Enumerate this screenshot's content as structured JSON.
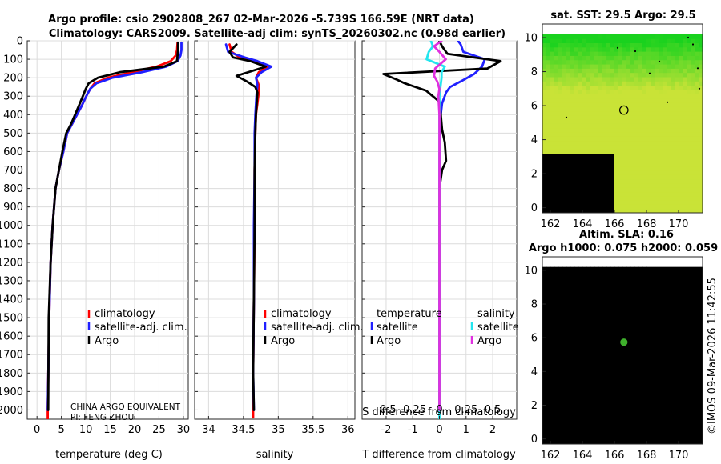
{
  "header": {
    "line1": "Argo profile: csio 2902808_267 02-Mar-2026 -5.739S 166.59E (NRT data)",
    "line2": "Climatology: CARS2009. Satellite-adj clim: synTS_20260302.nc (0.98d earlier)"
  },
  "credit": {
    "org": "CHINA ARGO EQUIVALENT",
    "pi": "PI: FENG ZHOU"
  },
  "timestamp": "©IMOS 09-Mar-2026 11:42:55",
  "colors": {
    "climatology": "#ff0000",
    "satellite_adj": "#1f1fff",
    "argo": "#000000",
    "temp_satellite": "#2020ff",
    "sal_satellite": "#22e5ee",
    "sal_argo": "#e030e0",
    "map_green": "#19d21e",
    "map_yellow": "#c9e337",
    "map_orange": "#e7c63a"
  },
  "chart_data": [
    {
      "type": "line",
      "title": "",
      "xlabel": "temperature (deg C)",
      "ylabel": "",
      "xlim": [
        -2,
        31
      ],
      "ylim": [
        2050,
        0
      ],
      "xticks": [
        0,
        5,
        10,
        15,
        20,
        25,
        30
      ],
      "yticks": [
        0,
        100,
        200,
        300,
        400,
        500,
        600,
        700,
        800,
        900,
        1000,
        1100,
        1200,
        1300,
        1400,
        1500,
        1600,
        1700,
        1800,
        1900,
        2000
      ],
      "legend": {
        "position": "bottom-right",
        "entries": [
          "climatology",
          "satellite-adj. clim.",
          "Argo"
        ]
      },
      "series": [
        {
          "name": "climatology",
          "color": "#ff0000",
          "x": [
            28.8,
            28.7,
            28.4,
            27.4,
            24.5,
            19.5,
            14.5,
            11.8,
            10.9,
            10.1,
            9.2,
            8.2,
            7.2,
            6.2,
            5.4,
            4.5,
            3.8,
            3.2,
            2.8,
            2.5,
            2.2,
            2.2
          ],
          "y": [
            10,
            50,
            80,
            110,
            140,
            170,
            200,
            230,
            260,
            300,
            350,
            400,
            450,
            500,
            600,
            700,
            800,
            1000,
            1200,
            1500,
            2000,
            2050
          ]
        },
        {
          "name": "satellite-adj. clim.",
          "color": "#1f1fff",
          "x": [
            29.6,
            29.6,
            29.4,
            28.8,
            26.5,
            21.5,
            15.5,
            12.2,
            10.9,
            10.1,
            9.2,
            8.2,
            7.2,
            6.2,
            5.4,
            4.5,
            3.8,
            3.2,
            2.8,
            2.5,
            2.2
          ],
          "y": [
            10,
            50,
            80,
            110,
            140,
            170,
            200,
            230,
            260,
            300,
            350,
            400,
            450,
            500,
            600,
            700,
            800,
            1000,
            1200,
            1500,
            2000
          ]
        },
        {
          "name": "Argo",
          "color": "#000000",
          "x": [
            28.9,
            28.9,
            28.8,
            28.7,
            26.0,
            17.0,
            12.5,
            10.6,
            10.0,
            9.4,
            8.6,
            7.8,
            7.0,
            6.0,
            5.2,
            4.5,
            3.8,
            3.2,
            2.8,
            2.4,
            2.3
          ],
          "y": [
            10,
            50,
            80,
            110,
            140,
            170,
            200,
            230,
            260,
            300,
            350,
            400,
            450,
            500,
            600,
            700,
            800,
            1000,
            1200,
            1500,
            2000
          ]
        }
      ]
    },
    {
      "type": "line",
      "title": "",
      "xlabel": "salinity",
      "ylabel": "",
      "xlim": [
        33.8,
        36.1
      ],
      "ylim": [
        2050,
        0
      ],
      "xticks": [
        34,
        34.5,
        35,
        35.5,
        36
      ],
      "xticklabels": [
        "34",
        "34.5",
        "35",
        "35.5",
        "36"
      ],
      "legend": {
        "position": "bottom-right",
        "entries": [
          "climatology",
          "satellite-adj. clim.",
          "Argo"
        ]
      },
      "series": [
        {
          "name": "climatology",
          "color": "#ff0000",
          "x": [
            34.3,
            34.33,
            34.45,
            34.62,
            34.85,
            34.72,
            34.68,
            34.72,
            34.72,
            34.7,
            34.68,
            34.67,
            34.66,
            34.66,
            34.65,
            34.64,
            34.64
          ],
          "y": [
            20,
            60,
            90,
            110,
            140,
            170,
            200,
            240,
            280,
            340,
            400,
            500,
            700,
            1000,
            1400,
            1800,
            2040
          ]
        },
        {
          "name": "satellite-adj. clim.",
          "color": "#1f1fff",
          "x": [
            34.25,
            34.28,
            34.52,
            34.7,
            34.9,
            34.76,
            34.68,
            34.7,
            34.69,
            34.68,
            34.67,
            34.66,
            34.66,
            34.65,
            34.65,
            34.64,
            34.65
          ],
          "y": [
            20,
            60,
            90,
            110,
            140,
            170,
            200,
            240,
            280,
            340,
            400,
            500,
            700,
            1000,
            1400,
            1800,
            2000
          ]
        },
        {
          "name": "Argo",
          "color": "#000000",
          "x": [
            34.4,
            34.3,
            34.35,
            34.6,
            34.82,
            34.4,
            34.55,
            34.67,
            34.7,
            34.69,
            34.68,
            34.67,
            34.66,
            34.66,
            34.65,
            34.64,
            34.65
          ],
          "y": [
            20,
            60,
            90,
            110,
            140,
            190,
            220,
            250,
            280,
            340,
            400,
            500,
            700,
            1000,
            1400,
            1800,
            2000
          ]
        }
      ]
    },
    {
      "type": "line",
      "title": "",
      "xlabel": "T difference from climatology",
      "x2label": "S difference from climatology",
      "xlim": [
        -2.9,
        2.9
      ],
      "x2lim": [
        -0.725,
        0.725
      ],
      "ylim": [
        2050,
        0
      ],
      "xticks": [
        -2,
        -1,
        0,
        1,
        2
      ],
      "x2ticks": [
        -0.5,
        -0.25,
        0,
        0.25,
        0.5
      ],
      "legend": {
        "position": "bottom",
        "groups": [
          {
            "title": "temperature",
            "entries": [
              "satellite",
              "Argo"
            ]
          },
          {
            "title": "salinity",
            "entries": [
              "satellite",
              "Argo"
            ]
          }
        ]
      },
      "series": [
        {
          "name": "temperature satellite",
          "axis": "T",
          "color": "#2020ff",
          "x": [
            0.7,
            0.8,
            0.9,
            1.7,
            1.6,
            1.3,
            0.8,
            0.4,
            0.25,
            0.1,
            0.05,
            0.02,
            0.0,
            0.0,
            0.0
          ],
          "y": [
            0,
            20,
            60,
            100,
            140,
            180,
            220,
            250,
            280,
            340,
            400,
            500,
            700,
            1000,
            2000
          ]
        },
        {
          "name": "temperature Argo",
          "axis": "T",
          "color": "#000000",
          "x": [
            0.0,
            0.1,
            0.3,
            2.3,
            1.8,
            -2.1,
            -1.6,
            -1.3,
            -0.5,
            0.0,
            0.05,
            0.1,
            0.2,
            0.25,
            0.1,
            0.0,
            0.0,
            0.0,
            0.0
          ],
          "y": [
            0,
            30,
            70,
            110,
            150,
            180,
            210,
            230,
            270,
            330,
            400,
            480,
            550,
            650,
            700,
            800,
            1000,
            1500,
            2000
          ]
        },
        {
          "name": "salinity satellite",
          "axis": "S",
          "color": "#22e5ee",
          "x": [
            -0.08,
            -0.06,
            -0.1,
            -0.12,
            0.05,
            0.02,
            0.02,
            0.01,
            0.0,
            0.0,
            0.0,
            0.0,
            0.0,
            0.0
          ],
          "y": [
            0,
            30,
            60,
            100,
            140,
            170,
            200,
            250,
            300,
            400,
            600,
            1000,
            1500,
            2050
          ]
        },
        {
          "name": "salinity Argo",
          "axis": "S",
          "color": "#e030e0",
          "x": [
            0.02,
            -0.05,
            0.0,
            0.06,
            -0.04,
            -0.05,
            -0.02,
            0.0,
            -0.01,
            0.0,
            0.0,
            0.0,
            0.0
          ],
          "y": [
            0,
            30,
            60,
            100,
            150,
            190,
            220,
            260,
            300,
            400,
            700,
            1000,
            2000
          ]
        }
      ]
    },
    {
      "type": "heatmap",
      "title": "sat. SST: 29.5 Argo: 29.5",
      "xlim": [
        161.5,
        171.5
      ],
      "ylim": [
        -0.3,
        10.8
      ],
      "xticks": [
        162,
        164,
        166,
        168,
        170
      ],
      "yticks": [
        0,
        2,
        4,
        6,
        8,
        10
      ],
      "marker": {
        "lon": 166.59,
        "lat": 5.739
      },
      "data_extent_lat_max": 10.1
    },
    {
      "type": "heatmap",
      "title": "Altim. SLA: 0.16",
      "subtitle": "Argo h1000: 0.075 h2000: 0.059",
      "xlim": [
        161.5,
        171.5
      ],
      "ylim": [
        -0.3,
        10.8
      ],
      "xticks": [
        162,
        164,
        166,
        168,
        170
      ],
      "yticks": [
        0,
        2,
        4,
        6,
        8,
        10
      ],
      "marker": {
        "lon": 166.59,
        "lat": 5.739
      },
      "data_extent_lat_max": 10.1
    }
  ]
}
